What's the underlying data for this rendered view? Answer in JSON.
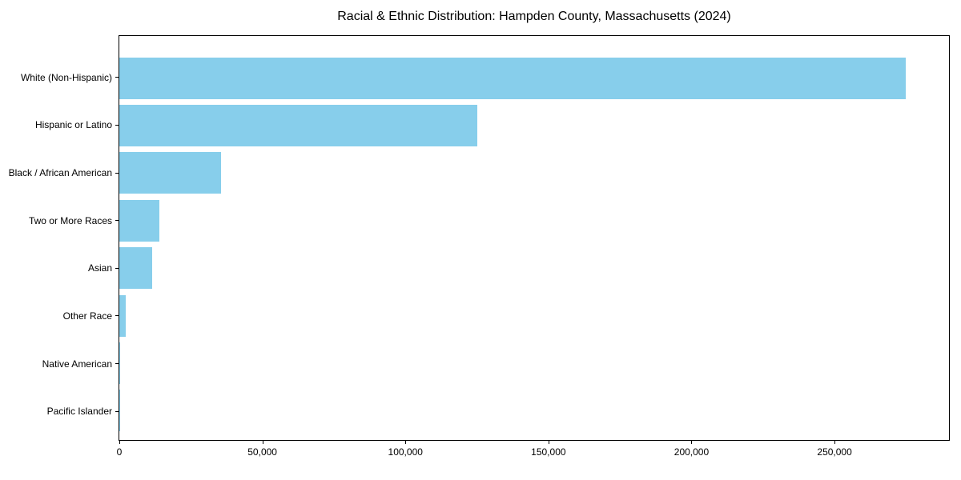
{
  "title": "Racial & Ethnic Distribution: Hampden County, Massachusetts (2024)",
  "colors": {
    "bar": "#87CEEB",
    "text": "#000000",
    "frame": "#000000",
    "background": "#FFFFFF"
  },
  "chart_data": {
    "type": "bar",
    "orientation": "horizontal",
    "title": "Racial & Ethnic Distribution: Hampden County, Massachusetts (2024)",
    "categories": [
      "White (Non-Hispanic)",
      "Hispanic or Latino",
      "Black / African American",
      "Two or More Races",
      "Asian",
      "Other Race",
      "Native American",
      "Pacific Islander"
    ],
    "values": [
      275000,
      125000,
      35500,
      14000,
      11500,
      2300,
      300,
      100
    ],
    "xlabel": "",
    "ylabel": "",
    "xlim": [
      0,
      290000
    ],
    "x_ticks": [
      0,
      50000,
      100000,
      150000,
      200000,
      250000
    ],
    "x_tick_labels": [
      "0",
      "50,000",
      "100,000",
      "150,000",
      "200,000",
      "250,000"
    ],
    "grid": false,
    "legend": false,
    "bar_color": "#87CEEB"
  }
}
